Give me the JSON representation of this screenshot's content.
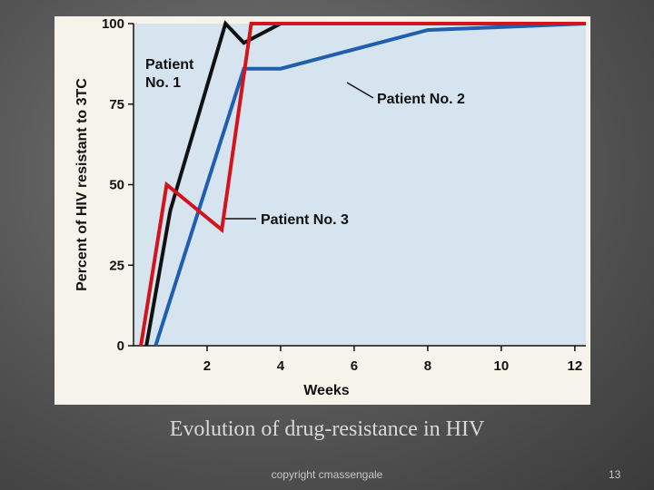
{
  "caption": "Evolution of drug-resistance in HIV",
  "footer": {
    "copyright": "copyright cmassengale",
    "page_number": "13"
  },
  "chart_data": {
    "type": "line",
    "ylabel": "Percent of HIV resistant to 3TC",
    "xlabel": "Weeks",
    "xlim": [
      0,
      12.3
    ],
    "ylim": [
      0,
      100
    ],
    "x_ticks": [
      2,
      4,
      6,
      8,
      10,
      12
    ],
    "y_ticks": [
      0,
      25,
      50,
      75,
      100
    ],
    "grid": false,
    "legend": "none",
    "background_color": "#d6e4ef",
    "series": [
      {
        "name": "Patient No. 1",
        "label_lines": [
          "Patient",
          "No. 1"
        ],
        "color": "#111111",
        "points": [
          [
            0.35,
            0
          ],
          [
            1.0,
            42
          ],
          [
            2.5,
            100
          ],
          [
            3.0,
            94
          ],
          [
            4.0,
            100
          ],
          [
            12.3,
            100
          ]
        ]
      },
      {
        "name": "Patient No. 2",
        "label_lines": [
          "Patient No. 2"
        ],
        "color": "#1f5fae",
        "points": [
          [
            0.6,
            0
          ],
          [
            3.0,
            86
          ],
          [
            4.0,
            86
          ],
          [
            8.0,
            98
          ],
          [
            12.3,
            100
          ]
        ]
      },
      {
        "name": "Patient No. 3",
        "label_lines": [
          "Patient No. 3"
        ],
        "color": "#d4141c",
        "points": [
          [
            0.2,
            0
          ],
          [
            0.9,
            50
          ],
          [
            2.4,
            36
          ],
          [
            3.2,
            100
          ],
          [
            12.3,
            100
          ]
        ]
      }
    ]
  }
}
